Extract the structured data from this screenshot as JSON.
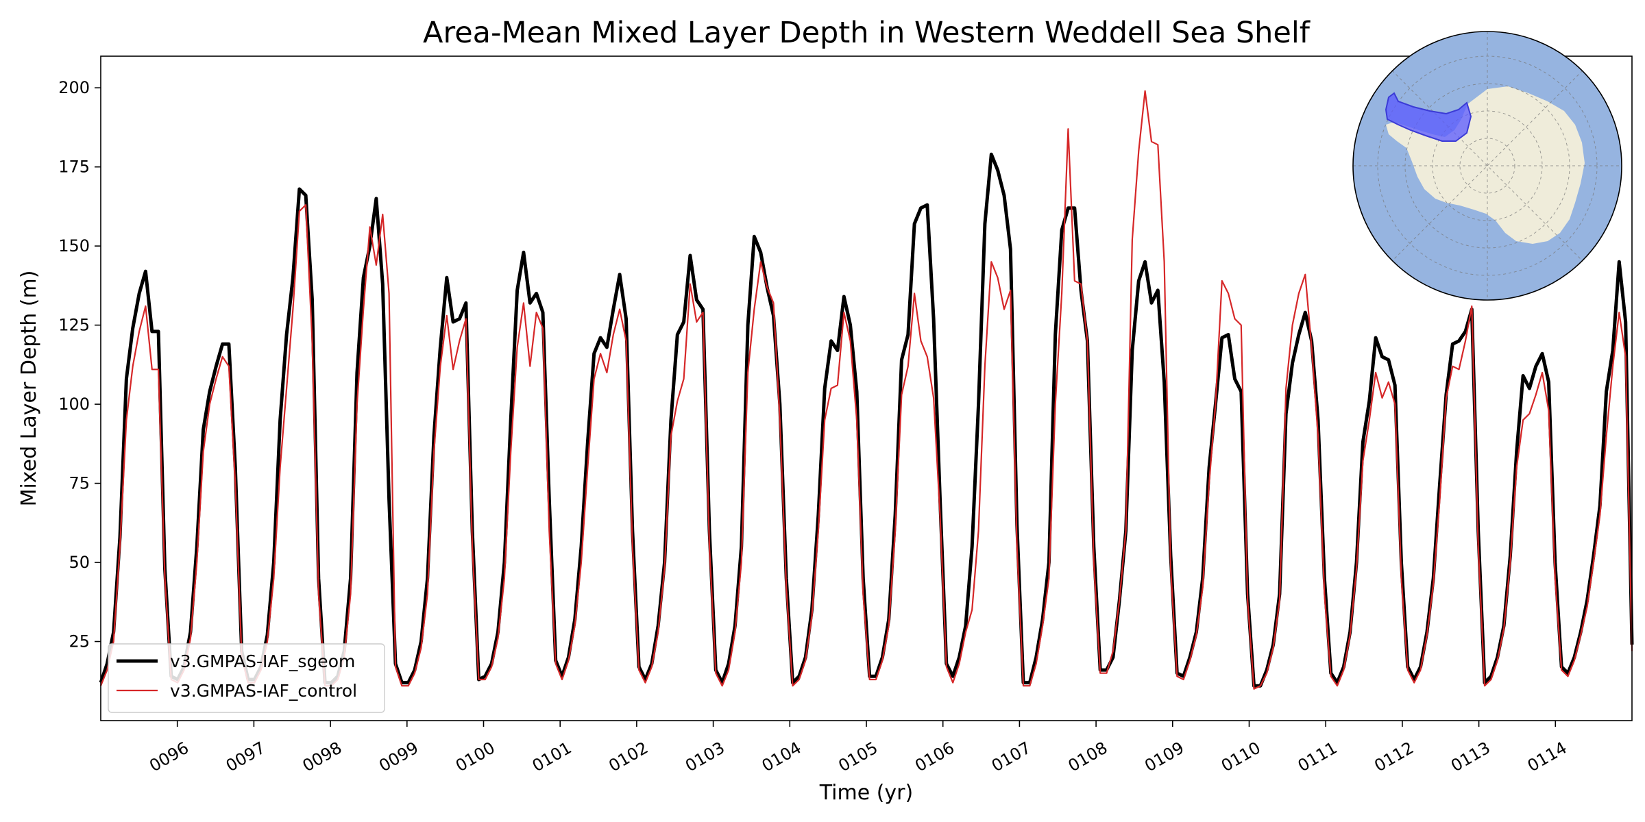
{
  "chart_data": {
    "type": "line",
    "title": "Area-Mean Mixed Layer Depth in Western Weddell Sea Shelf",
    "xlabel": "Time (yr)",
    "ylabel": "Mixed Layer Depth (m)",
    "xlim": [
      95.0,
      115.0
    ],
    "ylim": [
      0,
      210
    ],
    "yticks": [
      25,
      50,
      75,
      100,
      125,
      150,
      175,
      200
    ],
    "xticks": [
      96,
      97,
      98,
      99,
      100,
      101,
      102,
      103,
      104,
      105,
      106,
      107,
      108,
      109,
      110,
      111,
      112,
      113,
      114
    ],
    "xtick_labels": [
      "0096",
      "0097",
      "0098",
      "0099",
      "0100",
      "0101",
      "0102",
      "0103",
      "0104",
      "0105",
      "0106",
      "0107",
      "0108",
      "0109",
      "0110",
      "0111",
      "0112",
      "0113",
      "0114"
    ],
    "grid": false,
    "legend_position": "lower-left",
    "inset": "South polar map of Antarctica with the Western Weddell Sea shelf region highlighted",
    "inset_colors": {
      "ocean": "#96b4e0",
      "land": "#efecda",
      "region": "#5a5aff"
    },
    "series": [
      {
        "name": "v3.GMPAS-IAF_sgeom",
        "color": "#000000",
        "values": [
          12,
          18,
          28,
          58,
          108,
          124,
          135,
          142,
          123,
          123,
          48,
          14,
          13,
          17,
          28,
          55,
          92,
          104,
          112,
          119,
          119,
          80,
          22,
          13,
          13,
          17,
          27,
          50,
          95,
          122,
          140,
          168,
          166,
          133,
          45,
          12,
          12,
          14,
          22,
          45,
          110,
          140,
          150,
          165,
          138,
          70,
          18,
          12,
          12,
          16,
          25,
          45,
          90,
          118,
          140,
          126,
          127,
          132,
          60,
          13,
          14,
          18,
          28,
          50,
          95,
          136,
          148,
          132,
          135,
          129,
          70,
          19,
          14,
          20,
          32,
          55,
          88,
          116,
          121,
          118,
          130,
          141,
          127,
          60,
          17,
          13,
          18,
          30,
          50,
          95,
          122,
          126,
          147,
          133,
          130,
          60,
          16,
          12,
          18,
          30,
          55,
          125,
          153,
          148,
          137,
          128,
          100,
          45,
          12,
          14,
          20,
          35,
          65,
          105,
          120,
          117,
          134,
          125,
          104,
          45,
          14,
          14,
          20,
          32,
          65,
          114,
          122,
          157,
          162,
          163,
          127,
          70,
          18,
          14,
          20,
          30,
          55,
          100,
          157,
          179,
          174,
          166,
          149,
          62,
          12,
          12,
          20,
          32,
          50,
          122,
          155,
          162,
          162,
          136,
          120,
          55,
          16,
          16,
          20,
          38,
          60,
          117,
          139,
          145,
          132,
          136,
          107,
          52,
          15,
          14,
          20,
          28,
          45,
          80,
          100,
          121,
          122,
          108,
          104,
          40,
          11,
          11,
          16,
          24,
          40,
          97,
          113,
          122,
          129,
          120,
          95,
          45,
          15,
          12,
          17,
          28,
          50,
          88,
          101,
          121,
          115,
          114,
          106,
          50,
          17,
          13,
          17,
          28,
          45,
          75,
          103,
          119,
          120,
          123,
          130,
          60,
          12,
          14,
          20,
          30,
          52,
          85,
          109,
          105,
          112,
          116,
          107,
          50,
          17,
          15,
          20,
          28,
          38,
          52,
          68,
          104,
          117,
          145,
          126,
          24
        ]
      },
      {
        "name": "v3.GMPAS-IAF_control",
        "color": "#d62728",
        "values": [
          11,
          16,
          25,
          55,
          95,
          112,
          123,
          131,
          111,
          111,
          45,
          13,
          12,
          16,
          26,
          50,
          85,
          100,
          108,
          115,
          112,
          75,
          20,
          12,
          12,
          16,
          25,
          45,
          80,
          105,
          130,
          161,
          163,
          120,
          40,
          11,
          11,
          13,
          20,
          40,
          100,
          130,
          156,
          144,
          160,
          135,
          17,
          11,
          11,
          15,
          23,
          40,
          85,
          112,
          128,
          111,
          120,
          127,
          55,
          13,
          13,
          17,
          26,
          45,
          85,
          118,
          132,
          112,
          129,
          124,
          60,
          18,
          13,
          19,
          30,
          50,
          80,
          108,
          116,
          110,
          122,
          130,
          120,
          55,
          16,
          12,
          17,
          28,
          48,
          90,
          101,
          108,
          138,
          126,
          129,
          55,
          15,
          11,
          16,
          28,
          50,
          110,
          130,
          145,
          137,
          132,
          95,
          42,
          11,
          13,
          19,
          33,
          60,
          95,
          105,
          106,
          129,
          120,
          95,
          40,
          13,
          13,
          19,
          30,
          60,
          103,
          112,
          135,
          120,
          115,
          102,
          65,
          17,
          12,
          18,
          28,
          35,
          60,
          112,
          145,
          140,
          130,
          136,
          55,
          11,
          11,
          18,
          30,
          45,
          100,
          135,
          187,
          139,
          138,
          120,
          50,
          15,
          15,
          22,
          38,
          60,
          152,
          180,
          199,
          183,
          182,
          145,
          48,
          14,
          13,
          19,
          27,
          42,
          75,
          100,
          139,
          135,
          127,
          125,
          38,
          10,
          11,
          15,
          23,
          38,
          105,
          125,
          135,
          141,
          118,
          90,
          40,
          14,
          11,
          16,
          27,
          48,
          82,
          95,
          110,
          102,
          107,
          100,
          45,
          16,
          12,
          16,
          27,
          43,
          70,
          102,
          112,
          111,
          120,
          131,
          55,
          11,
          13,
          19,
          29,
          50,
          80,
          95,
          97,
          103,
          110,
          98,
          45,
          16,
          14,
          19,
          27,
          36,
          50,
          65,
          90,
          112,
          129,
          115,
          22
        ]
      }
    ]
  }
}
